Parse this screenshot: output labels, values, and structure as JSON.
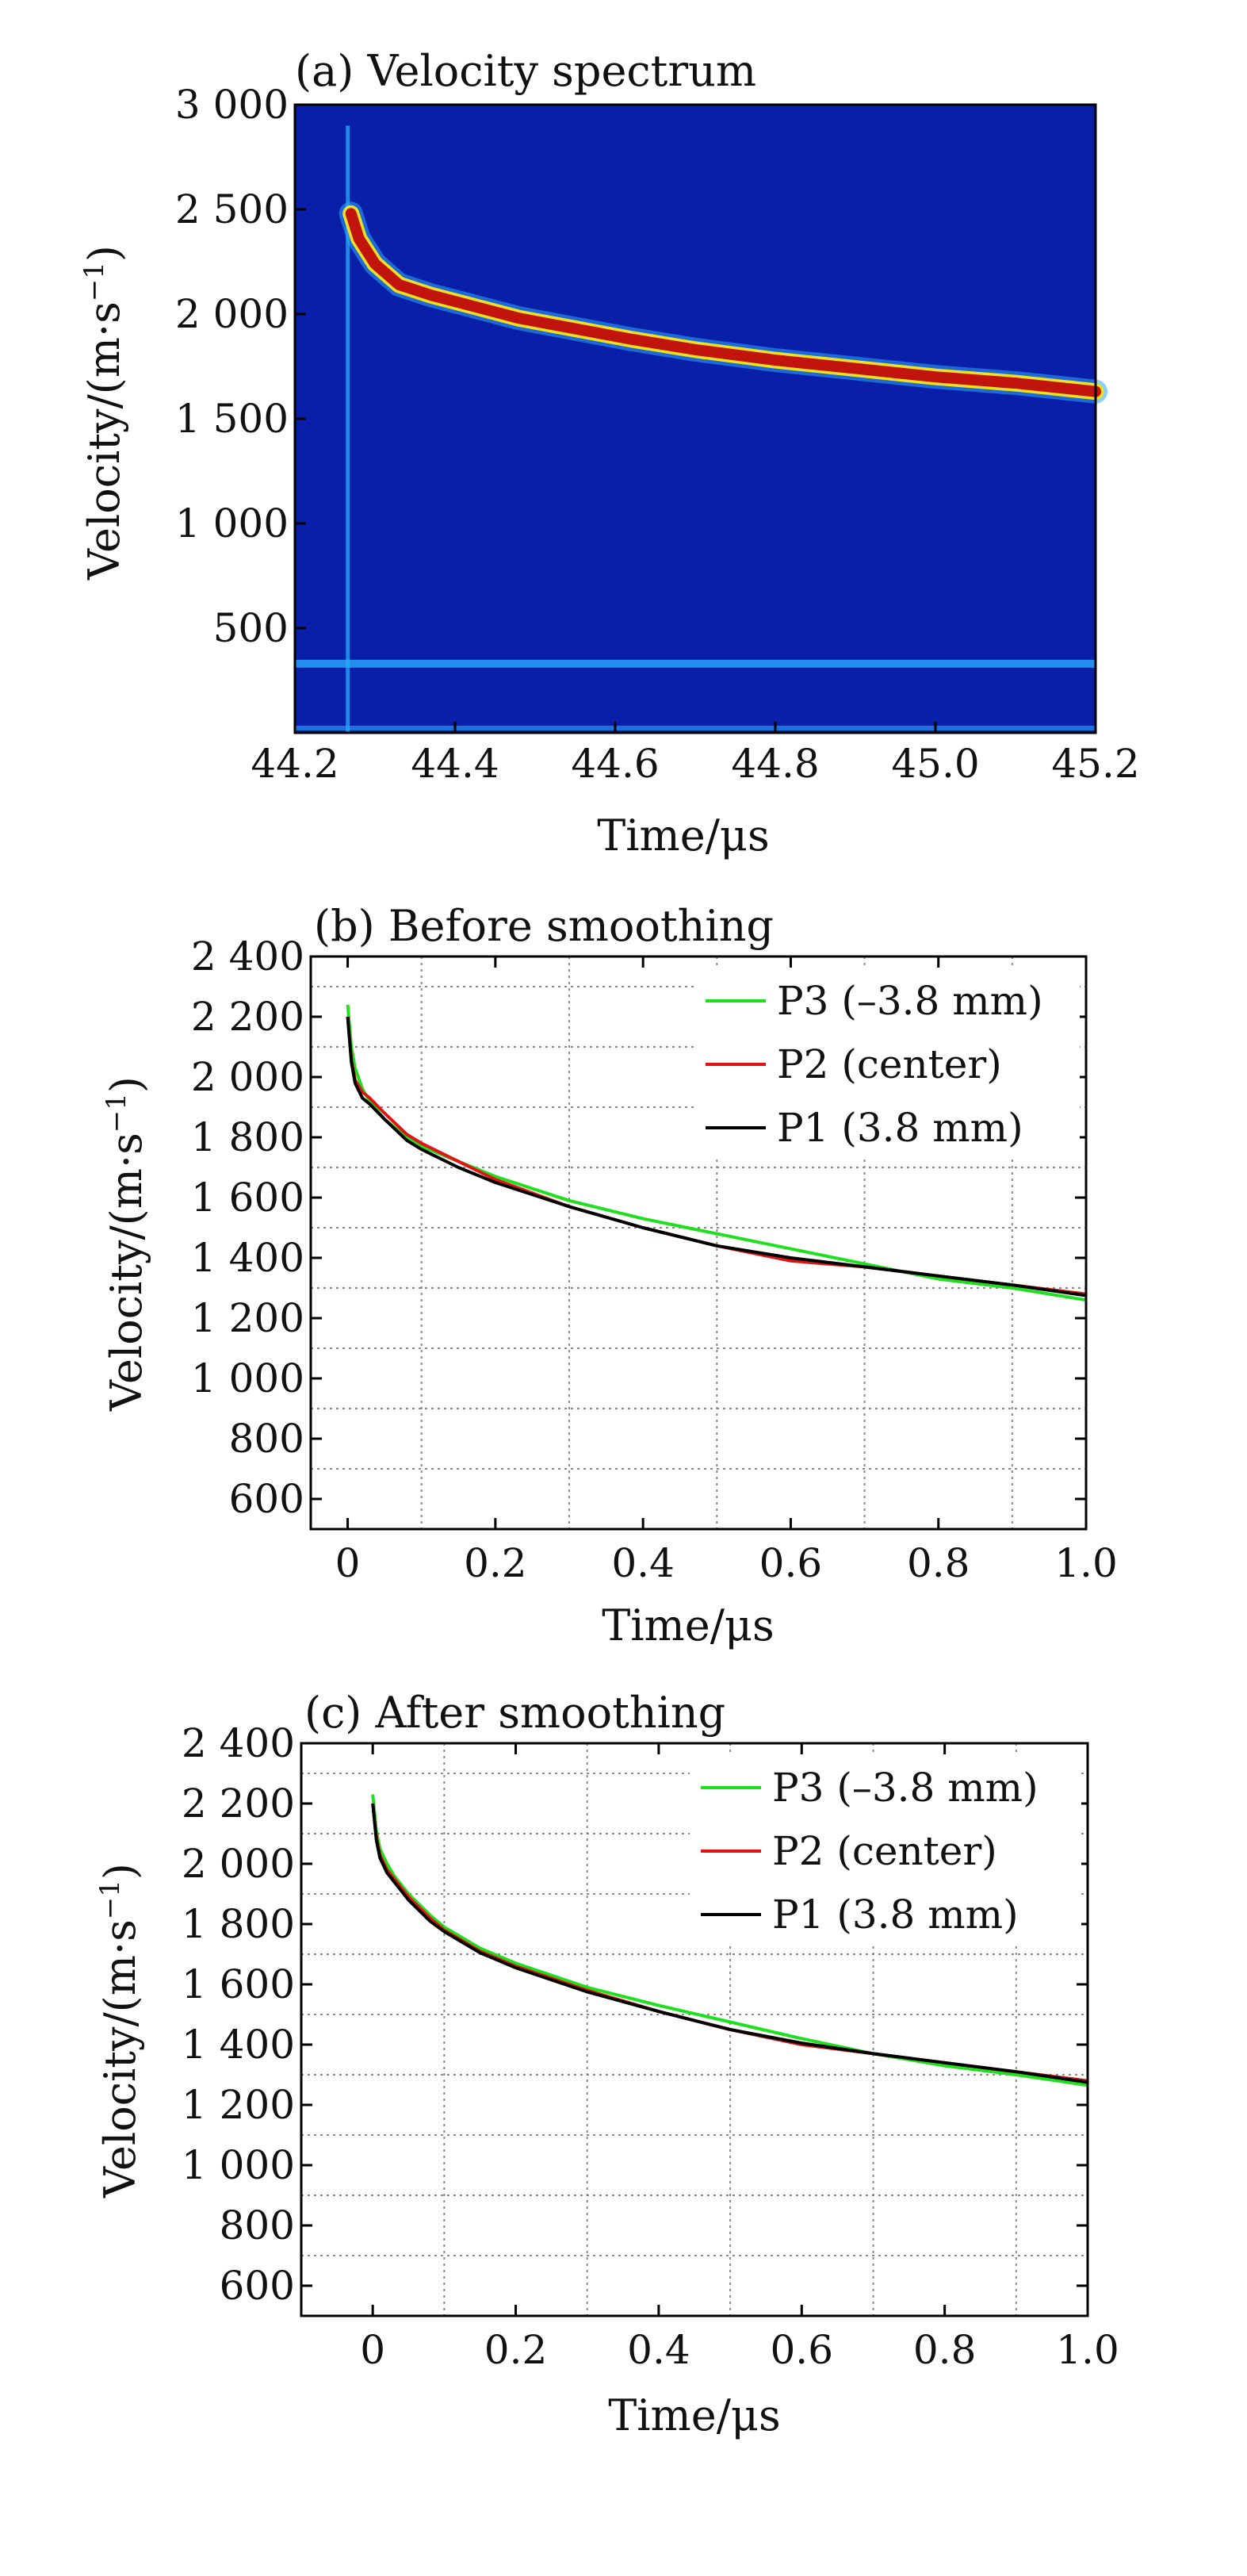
{
  "chart_data": [
    {
      "type": "heatmap",
      "title": "(a) Velocity spectrum",
      "xlabel": "Time/μs",
      "ylabel_main": "Velocity/(m·s",
      "ylabel_exp": "−1",
      "ylabel_close": ")",
      "xlim": [
        44.2,
        45.2
      ],
      "ylim": [
        0,
        3000
      ],
      "x_ticks": [
        44.2,
        44.4,
        44.6,
        44.8,
        45.0,
        45.2
      ],
      "x_tick_labels": [
        "44.2",
        "44.4",
        "44.6",
        "44.8",
        "45.0",
        "45.2"
      ],
      "y_ticks": [
        500,
        1000,
        1500,
        2000,
        2500,
        3000
      ],
      "y_tick_labels": [
        "500",
        "1 000",
        "1 500",
        "2 000",
        "2 500",
        "3 000"
      ],
      "ridge": {
        "x": [
          44.27,
          44.28,
          44.3,
          44.33,
          44.37,
          44.42,
          44.48,
          44.55,
          44.62,
          44.7,
          44.8,
          44.9,
          45.0,
          45.1,
          45.2
        ],
        "y": [
          2480,
          2360,
          2240,
          2140,
          2090,
          2040,
          1980,
          1930,
          1880,
          1830,
          1780,
          1740,
          1700,
          1670,
          1630
        ]
      },
      "baseline_band_velocity": 330,
      "colors": {
        "background": "#0a1fa8",
        "ridge": "#c0140c",
        "ridge_edge": "#f0e020",
        "halo": "#2aa8ff"
      }
    },
    {
      "type": "line",
      "title": "(b) Before smoothing",
      "xlabel": "Time/μs",
      "ylabel_main": "Velocity/(m·s",
      "ylabel_exp": "−1",
      "ylabel_close": ")",
      "xlim": [
        -0.05,
        1.0
      ],
      "ylim": [
        500,
        2400
      ],
      "x_ticks": [
        0,
        0.2,
        0.4,
        0.6,
        0.8,
        1.0
      ],
      "x_tick_labels": [
        "0",
        "0.2",
        "0.4",
        "0.6",
        "0.8",
        "1.0"
      ],
      "y_ticks": [
        600,
        800,
        1000,
        1200,
        1400,
        1600,
        1800,
        2000,
        2200,
        2400
      ],
      "y_tick_labels": [
        "600",
        "800",
        "1 000",
        "1 200",
        "1 400",
        "1 600",
        "1 800",
        "2 000",
        "2 200",
        "2 400"
      ],
      "grid": true,
      "legend_position": "top-right",
      "series": [
        {
          "name": "P3 (–3.8 mm)",
          "color": "#1ee01e",
          "x": [
            0,
            0.005,
            0.01,
            0.02,
            0.03,
            0.05,
            0.08,
            0.1,
            0.15,
            0.2,
            0.3,
            0.4,
            0.5,
            0.6,
            0.7,
            0.8,
            0.9,
            1.0
          ],
          "y": [
            2240,
            2100,
            2030,
            1960,
            1920,
            1860,
            1800,
            1770,
            1720,
            1670,
            1590,
            1530,
            1480,
            1430,
            1380,
            1330,
            1300,
            1260
          ]
        },
        {
          "name": "P2 (center)",
          "color": "#e01414",
          "x": [
            0,
            0.005,
            0.01,
            0.02,
            0.03,
            0.05,
            0.08,
            0.1,
            0.15,
            0.2,
            0.3,
            0.4,
            0.5,
            0.6,
            0.7,
            0.8,
            0.9,
            1.0
          ],
          "y": [
            2200,
            2060,
            1990,
            1950,
            1930,
            1880,
            1810,
            1780,
            1720,
            1660,
            1570,
            1500,
            1440,
            1390,
            1370,
            1340,
            1310,
            1280
          ]
        },
        {
          "name": "P1 (3.8 mm)",
          "color": "#000000",
          "x": [
            0,
            0.005,
            0.01,
            0.02,
            0.03,
            0.05,
            0.08,
            0.1,
            0.15,
            0.2,
            0.3,
            0.4,
            0.5,
            0.6,
            0.7,
            0.8,
            0.9,
            1.0
          ],
          "y": [
            2200,
            2050,
            1980,
            1930,
            1910,
            1860,
            1790,
            1760,
            1700,
            1650,
            1570,
            1500,
            1440,
            1400,
            1370,
            1340,
            1310,
            1275
          ]
        }
      ]
    },
    {
      "type": "line",
      "title": "(c) After smoothing",
      "xlabel": "Time/μs",
      "ylabel_main": "Velocity/(m·s",
      "ylabel_exp": "−1",
      "ylabel_close": ")",
      "xlim": [
        -0.1,
        1.0
      ],
      "ylim": [
        500,
        2400
      ],
      "x_ticks": [
        0,
        0.2,
        0.4,
        0.6,
        0.8,
        1.0
      ],
      "x_tick_labels": [
        "0",
        "0.2",
        "0.4",
        "0.6",
        "0.8",
        "1.0"
      ],
      "y_ticks": [
        600,
        800,
        1000,
        1200,
        1400,
        1600,
        1800,
        2000,
        2200,
        2400
      ],
      "y_tick_labels": [
        "600",
        "800",
        "1 000",
        "1 200",
        "1 400",
        "1 600",
        "1 800",
        "2 000",
        "2 200",
        "2 400"
      ],
      "grid": true,
      "legend_position": "top-right",
      "series": [
        {
          "name": "P3 (–3.8 mm)",
          "color": "#1ee01e",
          "x": [
            0,
            0.005,
            0.01,
            0.02,
            0.03,
            0.05,
            0.08,
            0.1,
            0.15,
            0.2,
            0.3,
            0.4,
            0.5,
            0.6,
            0.7,
            0.8,
            0.9,
            1.0
          ],
          "y": [
            2230,
            2110,
            2050,
            2000,
            1960,
            1900,
            1830,
            1790,
            1720,
            1670,
            1590,
            1530,
            1475,
            1420,
            1370,
            1330,
            1300,
            1265
          ]
        },
        {
          "name": "P2 (center)",
          "color": "#e01414",
          "x": [
            0,
            0.005,
            0.01,
            0.02,
            0.03,
            0.05,
            0.08,
            0.1,
            0.15,
            0.2,
            0.3,
            0.4,
            0.5,
            0.6,
            0.7,
            0.8,
            0.9,
            1.0
          ],
          "y": [
            2200,
            2090,
            2030,
            1980,
            1950,
            1890,
            1820,
            1780,
            1710,
            1660,
            1580,
            1510,
            1450,
            1400,
            1370,
            1340,
            1310,
            1280
          ]
        },
        {
          "name": "P1 (3.8 mm)",
          "color": "#000000",
          "x": [
            0,
            0.005,
            0.01,
            0.02,
            0.03,
            0.05,
            0.08,
            0.1,
            0.15,
            0.2,
            0.3,
            0.4,
            0.5,
            0.6,
            0.7,
            0.8,
            0.9,
            1.0
          ],
          "y": [
            2200,
            2080,
            2020,
            1970,
            1940,
            1880,
            1810,
            1775,
            1705,
            1655,
            1575,
            1510,
            1450,
            1405,
            1370,
            1340,
            1310,
            1275
          ]
        }
      ]
    }
  ]
}
